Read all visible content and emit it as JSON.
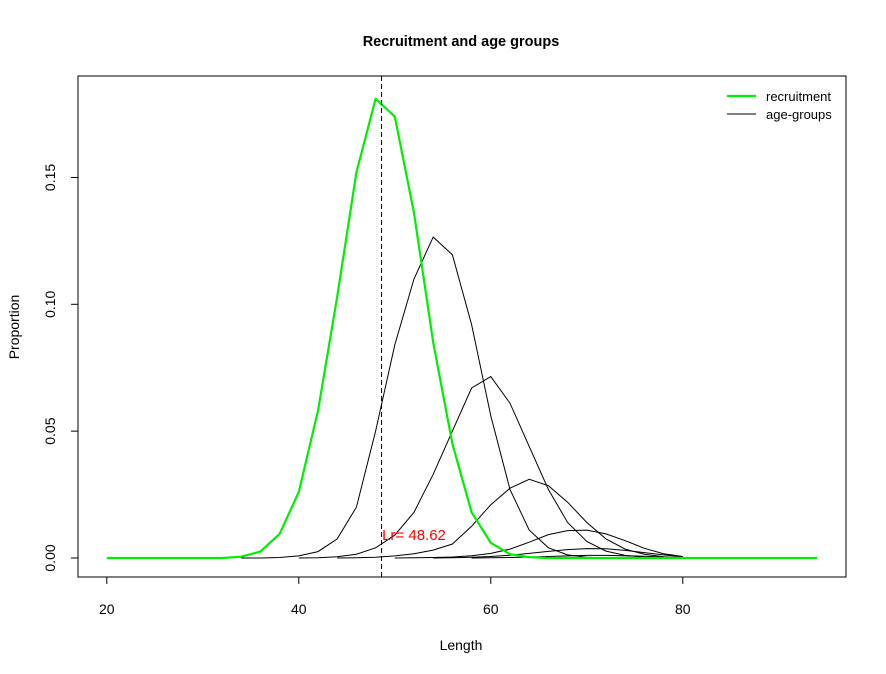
{
  "chart_data": {
    "type": "line",
    "title": "Recruitment and age groups",
    "xlabel": "Length",
    "ylabel": "Proportion",
    "xlim": [
      17,
      97
    ],
    "ylim": [
      -0.0075,
      0.19
    ],
    "xticks": [
      20,
      40,
      60,
      80
    ],
    "xtick_labels": [
      "20",
      "40",
      "60",
      "80"
    ],
    "yticks": [
      0.0,
      0.05,
      0.1,
      0.15
    ],
    "ytick_labels": [
      "0.00",
      "0.05",
      "0.10",
      "0.15"
    ],
    "grid": false,
    "legend": {
      "position": "top-right",
      "entries": [
        {
          "label": "recruitment",
          "color": "#00ee00",
          "width": 2.2
        },
        {
          "label": "age-groups",
          "color": "#000000",
          "width": 1
        }
      ]
    },
    "vline": {
      "x": 48.62,
      "style": "dashed",
      "color": "#000000"
    },
    "annotation": {
      "text": "Lr= 48.62",
      "x": 52,
      "y": 0.009,
      "color": "#ff0000"
    },
    "recruitment": {
      "color": "#00ee00",
      "x": [
        20,
        22,
        24,
        26,
        28,
        30,
        32,
        34,
        36,
        38,
        40,
        42,
        44,
        46,
        48,
        50,
        52,
        54,
        56,
        58,
        60,
        62,
        64,
        66,
        68,
        70,
        72,
        74,
        76,
        78,
        80,
        82,
        84,
        86,
        88,
        90,
        92,
        94
      ],
      "values": [
        0,
        0,
        0,
        0,
        0,
        0,
        0,
        0.0005,
        0.0025,
        0.0095,
        0.026,
        0.058,
        0.103,
        0.152,
        0.181,
        0.174,
        0.136,
        0.085,
        0.045,
        0.018,
        0.006,
        0.0015,
        0.0003,
        0,
        0,
        0,
        0,
        0,
        0,
        0,
        0,
        0,
        0,
        0,
        0,
        0,
        0,
        0
      ]
    },
    "series": [
      {
        "x": [
          34,
          36,
          38,
          40,
          42,
          44,
          46,
          48,
          50,
          52,
          54,
          56,
          58,
          60,
          62,
          64,
          66,
          68,
          70,
          72,
          74,
          76,
          78,
          80
        ],
        "values": [
          0,
          0,
          0.0002,
          0.0008,
          0.0025,
          0.0075,
          0.02,
          0.05,
          0.084,
          0.11,
          0.1265,
          0.1195,
          0.092,
          0.056,
          0.027,
          0.011,
          0.004,
          0.0012,
          0.0003,
          0,
          0,
          0,
          0,
          0
        ]
      },
      {
        "x": [
          40,
          42,
          44,
          46,
          48,
          50,
          52,
          54,
          56,
          58,
          60,
          62,
          64,
          66,
          68,
          70,
          72,
          74,
          76,
          78,
          80
        ],
        "values": [
          0,
          0.0001,
          0.0005,
          0.0015,
          0.004,
          0.009,
          0.018,
          0.033,
          0.05,
          0.067,
          0.0715,
          0.061,
          0.044,
          0.027,
          0.014,
          0.0065,
          0.0027,
          0.001,
          0.0003,
          0.0001,
          0
        ]
      },
      {
        "x": [
          44,
          46,
          48,
          50,
          52,
          54,
          56,
          58,
          60,
          62,
          64,
          66,
          68,
          70,
          72,
          74,
          76,
          78,
          80
        ],
        "values": [
          0,
          0.0001,
          0.0003,
          0.0008,
          0.0017,
          0.0031,
          0.0055,
          0.0125,
          0.021,
          0.0275,
          0.031,
          0.0285,
          0.022,
          0.014,
          0.0075,
          0.0035,
          0.0015,
          0.0005,
          0.0001
        ]
      },
      {
        "x": [
          50,
          52,
          54,
          56,
          58,
          60,
          62,
          64,
          66,
          68,
          70,
          72,
          74,
          76,
          78,
          80
        ],
        "values": [
          0,
          0.0001,
          0.0002,
          0.0004,
          0.0009,
          0.0018,
          0.0035,
          0.0062,
          0.0092,
          0.0108,
          0.011,
          0.0095,
          0.0068,
          0.0038,
          0.0017,
          0.0006
        ]
      },
      {
        "x": [
          54,
          56,
          58,
          60,
          62,
          64,
          66,
          68,
          70,
          72,
          74,
          76,
          78,
          80
        ],
        "values": [
          0,
          0.0001,
          0.0003,
          0.0006,
          0.0011,
          0.0018,
          0.0026,
          0.0033,
          0.0037,
          0.0036,
          0.003,
          0.0021,
          0.0012,
          0.0005
        ]
      },
      {
        "x": [
          58,
          60,
          62,
          64,
          66,
          68,
          70,
          72,
          74,
          76,
          78,
          80
        ],
        "values": [
          0,
          0.0001,
          0.0002,
          0.0004,
          0.0006,
          0.0008,
          0.001,
          0.001,
          0.0009,
          0.0007,
          0.0004,
          0.0002
        ]
      }
    ]
  }
}
